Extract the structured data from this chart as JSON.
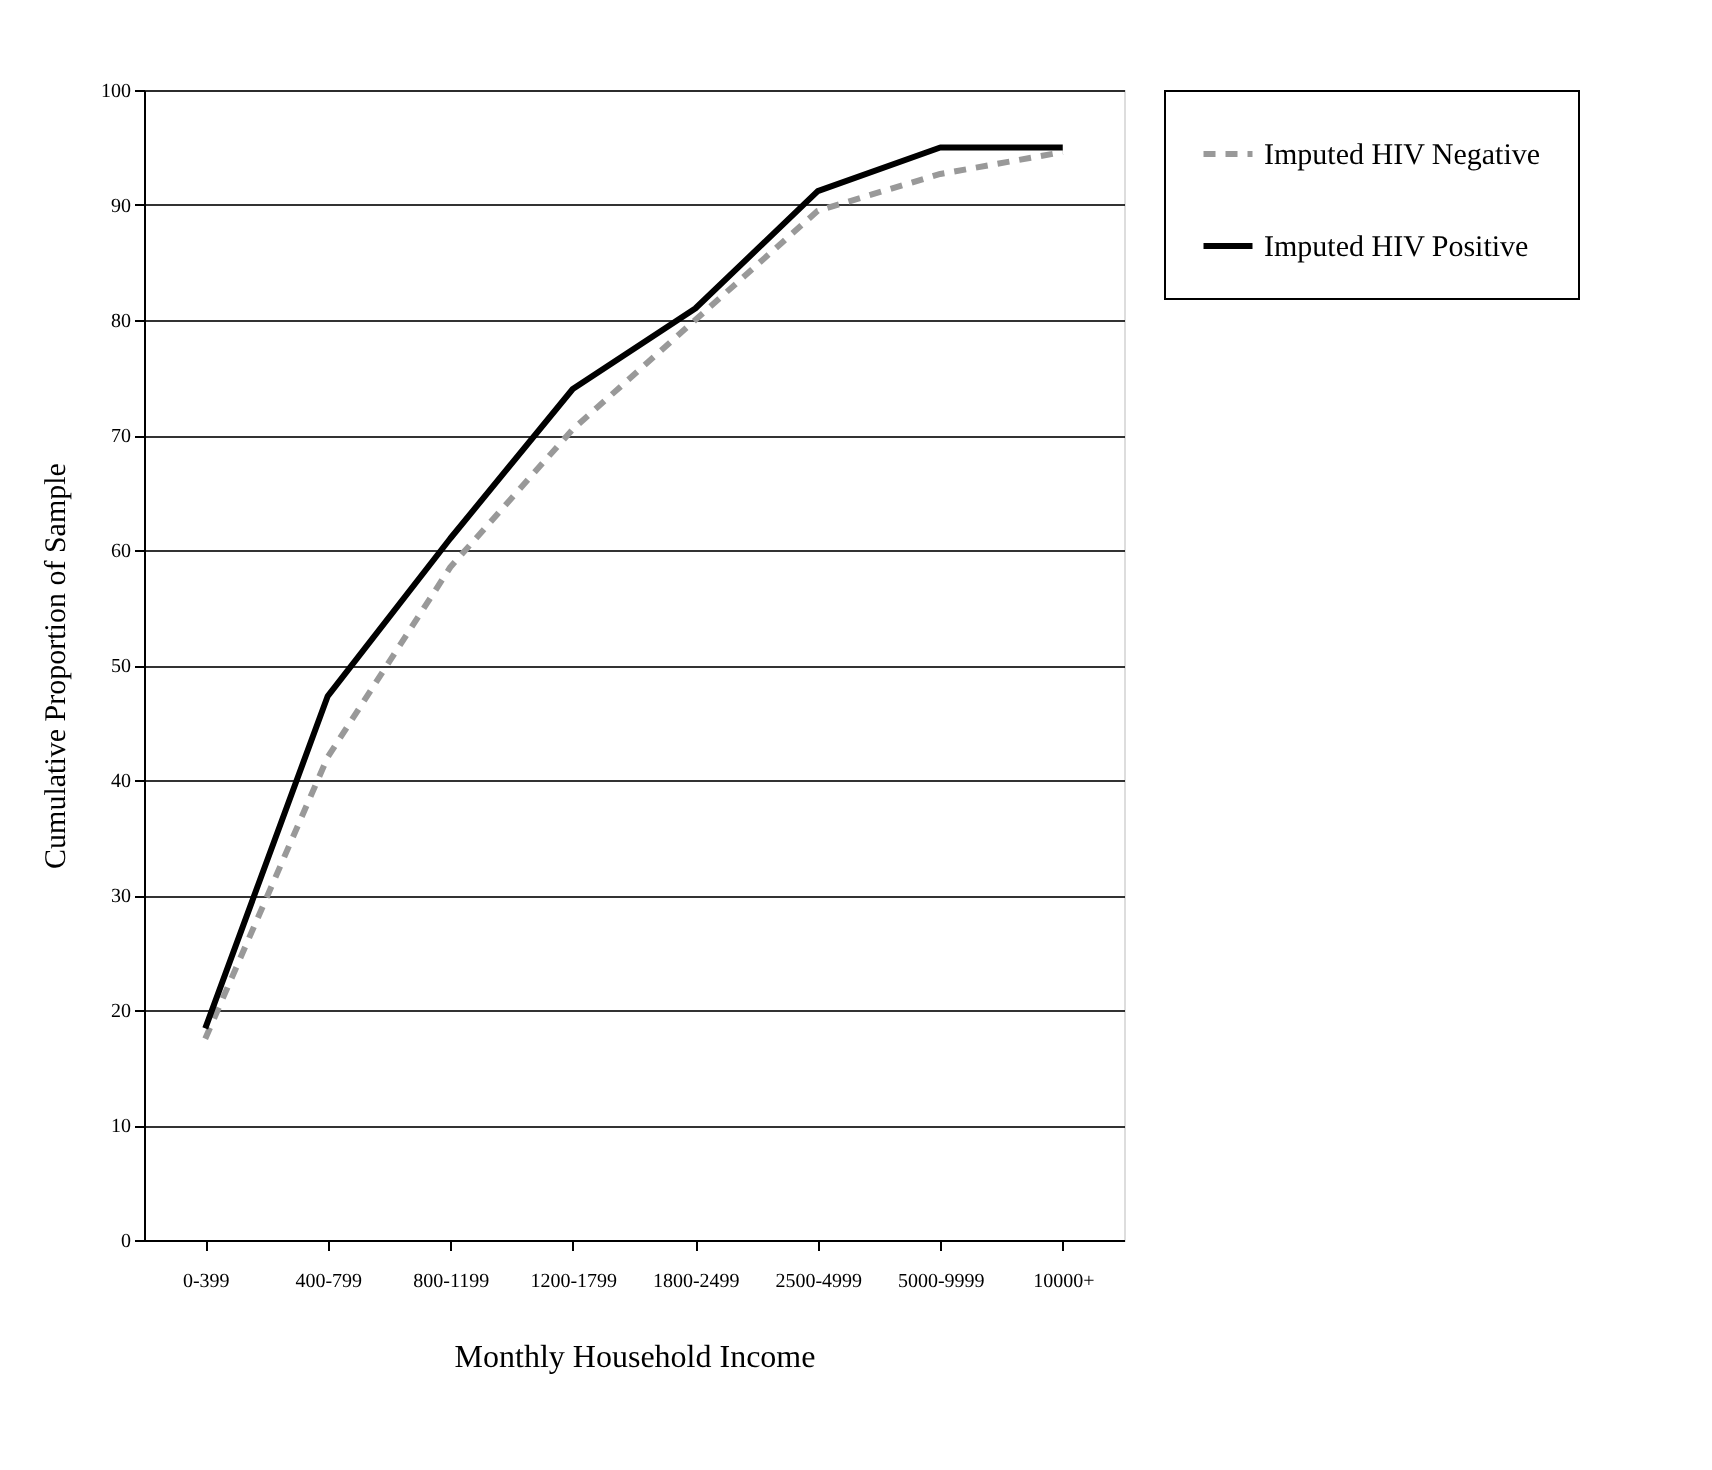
{
  "chart_data": {
    "type": "line",
    "xlabel": "Monthly Household Income",
    "ylabel": "Cumulative Proportion of Sample",
    "categories": [
      "0-399",
      "400-799",
      "800-1199",
      "1200-1799",
      "1800-2499",
      "2500-4999",
      "5000-9999",
      "10000+"
    ],
    "series": [
      {
        "name": "Imputed HIV Negative",
        "color": "#999999",
        "line_style": "dashed",
        "values": [
          17.5,
          42,
          58.5,
          70.5,
          80,
          89.5,
          92.7,
          94.6
        ]
      },
      {
        "name": "Imputed HIV Positive",
        "color": "#000000",
        "line_style": "solid",
        "values": [
          18.4,
          47.3,
          61,
          74,
          81,
          91.2,
          95,
          95
        ]
      }
    ],
    "ylim": [
      0,
      100
    ],
    "yticks": [
      0,
      10,
      20,
      30,
      40,
      50,
      60,
      70,
      80,
      90,
      100
    ],
    "grid": "y",
    "legend": "right",
    "marker": "none"
  }
}
